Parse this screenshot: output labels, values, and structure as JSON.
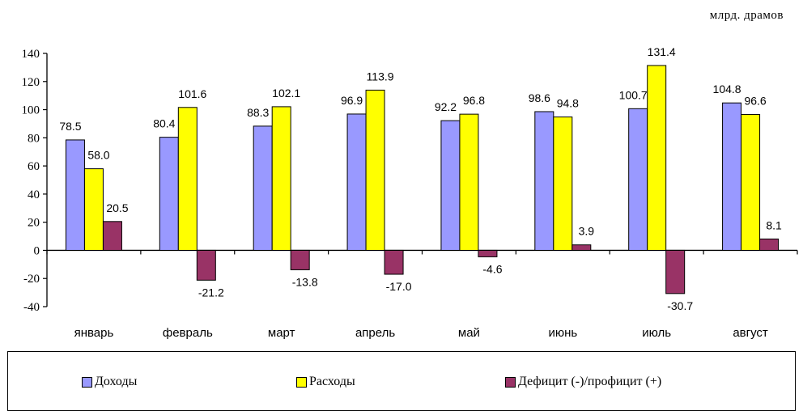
{
  "unit_label": "млрд.  драмов",
  "chart_data": {
    "type": "bar",
    "categories": [
      "январь",
      "февраль",
      "март",
      "апрель",
      "май",
      "июнь",
      "июль",
      "август"
    ],
    "series": [
      {
        "name": "Доходы",
        "color": "#9999FF",
        "values": [
          78.5,
          80.4,
          88.3,
          96.9,
          92.2,
          98.6,
          100.7,
          104.8
        ],
        "labels": [
          "78.5",
          "80.4",
          "88.3",
          "96.9",
          "92.2",
          "98.6",
          "100.7",
          "104.8"
        ]
      },
      {
        "name": "Расходы",
        "color": "#FFFF00",
        "values": [
          58.0,
          101.6,
          102.1,
          113.9,
          96.8,
          94.8,
          131.4,
          96.6
        ],
        "labels": [
          "58.0",
          "101.6",
          "102.1",
          "113.9",
          "96.8",
          "94.8",
          "131.4",
          "96.6"
        ]
      },
      {
        "name": "Дефицит (-)/профицит (+)",
        "color": "#993366",
        "values": [
          20.5,
          -21.2,
          -13.8,
          -17.0,
          -4.6,
          3.9,
          -30.7,
          8.1
        ],
        "labels": [
          "20.5",
          "-21.2",
          "-13.8",
          "-17.0",
          "-4.6",
          "3.9",
          "-30.7",
          "8.1"
        ]
      }
    ],
    "yticks": [
      "140",
      "120",
      "100",
      "80",
      "60",
      "40",
      "20",
      "0",
      "-20",
      "-40"
    ],
    "ylim": [
      -40,
      140
    ],
    "grid": false,
    "legend_position": "bottom"
  }
}
